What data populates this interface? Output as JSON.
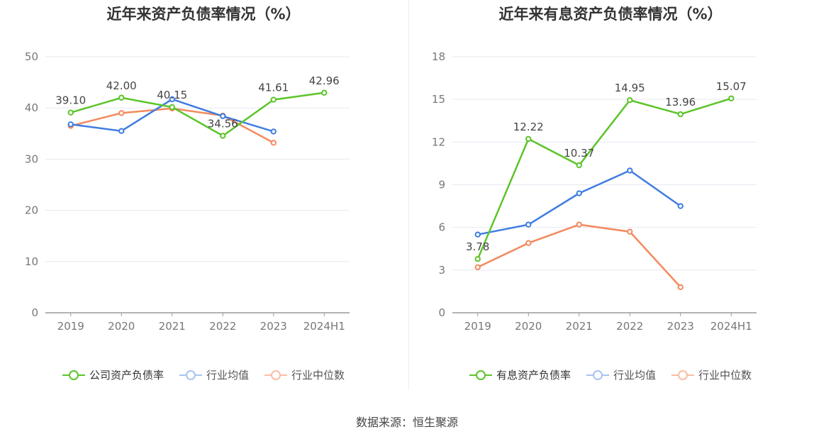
{
  "source_label": "数据来源：恒生聚源",
  "chart_data": [
    {
      "type": "line",
      "title": "近年来资产负债率情况（%）",
      "categories": [
        "2019",
        "2020",
        "2021",
        "2022",
        "2023",
        "2024H1"
      ],
      "ylim": [
        0,
        50
      ],
      "yticks": [
        0,
        10,
        20,
        30,
        40,
        50
      ],
      "grid": true,
      "legend_position": "bottom",
      "series": [
        {
          "name": "公司资产负债率",
          "color": "#5cc42a",
          "values": [
            39.1,
            42.0,
            40.15,
            34.56,
            41.61,
            42.96
          ],
          "labels": [
            "39.10",
            "42.00",
            "40.15",
            "34.56",
            "41.61",
            "42.96"
          ],
          "show_labels": true
        },
        {
          "name": "行业均值",
          "color": "#3f7de0",
          "values": [
            36.8,
            35.5,
            41.7,
            38.4,
            35.4,
            null
          ]
        },
        {
          "name": "行业中位数",
          "color": "#f38a5e",
          "values": [
            36.5,
            39.0,
            39.9,
            38.5,
            33.2,
            null
          ]
        }
      ]
    },
    {
      "type": "line",
      "title": "近年来有息资产负债率情况（%）",
      "categories": [
        "2019",
        "2020",
        "2021",
        "2022",
        "2023",
        "2024H1"
      ],
      "ylim": [
        0,
        18
      ],
      "yticks": [
        0,
        3,
        6,
        9,
        12,
        15,
        18
      ],
      "grid": true,
      "legend_position": "bottom",
      "series": [
        {
          "name": "有息资产负债率",
          "color": "#5cc42a",
          "values": [
            3.78,
            12.22,
            10.37,
            14.95,
            13.96,
            15.07
          ],
          "labels": [
            "3.78",
            "12.22",
            "10.37",
            "14.95",
            "13.96",
            "15.07"
          ],
          "show_labels": true
        },
        {
          "name": "行业均值",
          "color": "#3f7de0",
          "values": [
            5.5,
            6.2,
            8.4,
            10.0,
            7.5,
            null
          ]
        },
        {
          "name": "行业中位数",
          "color": "#f38a5e",
          "values": [
            3.2,
            4.9,
            6.2,
            5.7,
            1.8,
            null
          ]
        }
      ]
    }
  ]
}
